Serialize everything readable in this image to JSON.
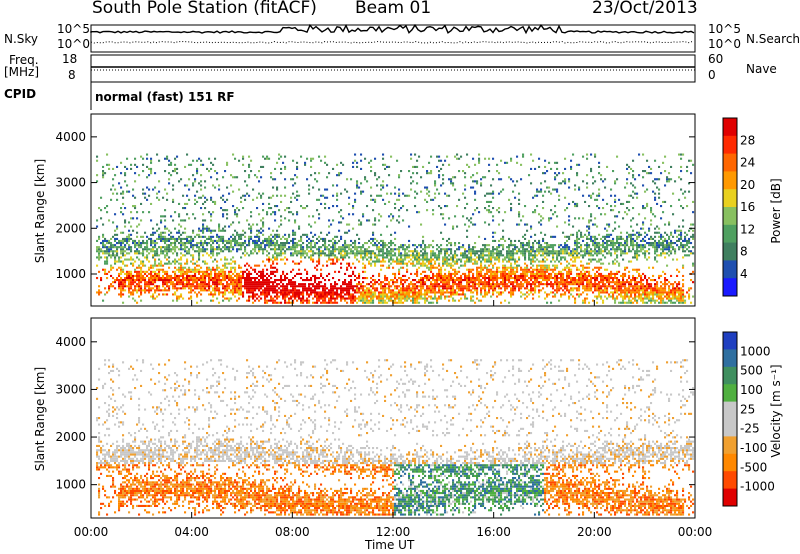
{
  "header": {
    "station": "South Pole Station (fitACF)",
    "beam": "Beam 01",
    "date": "23/Oct/2013"
  },
  "top_panels": {
    "nsky_label": "N.Sky",
    "nsky_ticks": [
      "10^5",
      "10^0"
    ],
    "nsearch_label": "N.Search",
    "nsearch_ticks": [
      "10^5",
      "10^0"
    ],
    "freq_label_1": "Freq.",
    "freq_label_2": "[MHz]",
    "freq_ticks": [
      "18",
      "8"
    ],
    "nave_label": "Nave",
    "nave_ticks": [
      "60",
      "0"
    ],
    "cpid_label": "CPID",
    "cpid_value": "normal (fast) 151 RF"
  },
  "colors": {
    "power_scale": [
      "#1a1aff",
      "#1f4fb0",
      "#3f7f5f",
      "#4fa060",
      "#88c060",
      "#e8d020",
      "#ff9900",
      "#ff6600",
      "#ff2a00",
      "#e00000"
    ],
    "velocity_scale": [
      "#e00000",
      "#ff4a00",
      "#ff8800",
      "#f0a030",
      "#c8c8c8",
      "#c8c8c8",
      "#50b040",
      "#3f8f5f",
      "#2f6fa0",
      "#1f3fc0"
    ]
  },
  "chart_data": [
    {
      "type": "heatmap",
      "name": "power",
      "ylabel": "Slant Range [km]",
      "ylim": [
        300,
        4500
      ],
      "yticks": [
        "4000",
        "3000",
        "2000",
        "1000"
      ],
      "xlim": [
        0,
        24
      ],
      "colorbar_label": "Power [dB]",
      "colorbar_ticks": [
        "28",
        "24",
        "20",
        "16",
        "12",
        "8",
        "4"
      ],
      "clim": [
        0,
        32
      ]
    },
    {
      "type": "heatmap",
      "name": "velocity",
      "ylabel": "Slant Range [km]",
      "ylim": [
        300,
        4500
      ],
      "yticks": [
        "4000",
        "3000",
        "2000",
        "1000"
      ],
      "xlim": [
        0,
        24
      ],
      "xlabel": "Time UT",
      "xticks": [
        "00:00",
        "04:00",
        "08:00",
        "12:00",
        "16:00",
        "20:00",
        "00:00"
      ],
      "colorbar_label": "Velocity [m s⁻¹]",
      "colorbar_ticks": [
        "1000",
        "500",
        "100",
        "25",
        "-25",
        "-100",
        "-500",
        "-1000"
      ]
    }
  ]
}
